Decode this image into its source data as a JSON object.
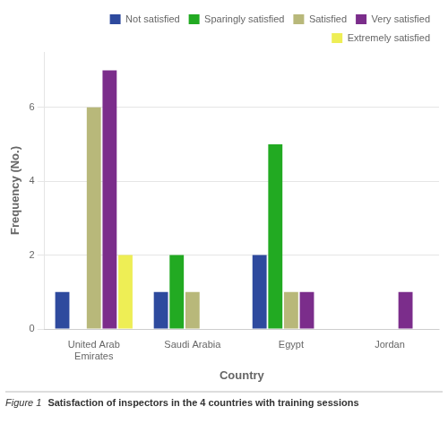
{
  "chart_data": {
    "type": "bar",
    "title": "Satisfaction of inspectors in the 4 countries with training sessions",
    "annotations": [
      {
        "text": "Figure 1 "
      }
    ],
    "xlabel": "Country",
    "ylabel": "Frequency (No.)",
    "categories": [
      "United Arab\nEmirates",
      "Saudi Arabia",
      "Egypt",
      "Jordan"
    ],
    "series": [
      {
        "name": "Not satisfied",
        "color": "#2E4A9E",
        "values": [
          1,
          1,
          2,
          0
        ]
      },
      {
        "name": "Sparingly satisfied",
        "color": "#22AA22",
        "values": [
          0,
          2,
          5,
          0
        ]
      },
      {
        "name": "Satisfied",
        "color": "#B8B87A",
        "values": [
          6,
          1,
          1,
          0
        ]
      },
      {
        "name": "Very satisfied",
        "color": "#7B2D8B",
        "values": [
          7,
          0,
          1,
          1
        ]
      },
      {
        "name": "Extremely satisfied",
        "color": "#EEEE55",
        "values": [
          2,
          0,
          0,
          0
        ]
      }
    ],
    "ylim": [
      0,
      7.5
    ],
    "yticks": [
      0,
      2,
      4,
      6
    ],
    "grid": true,
    "legend": "upper right"
  }
}
